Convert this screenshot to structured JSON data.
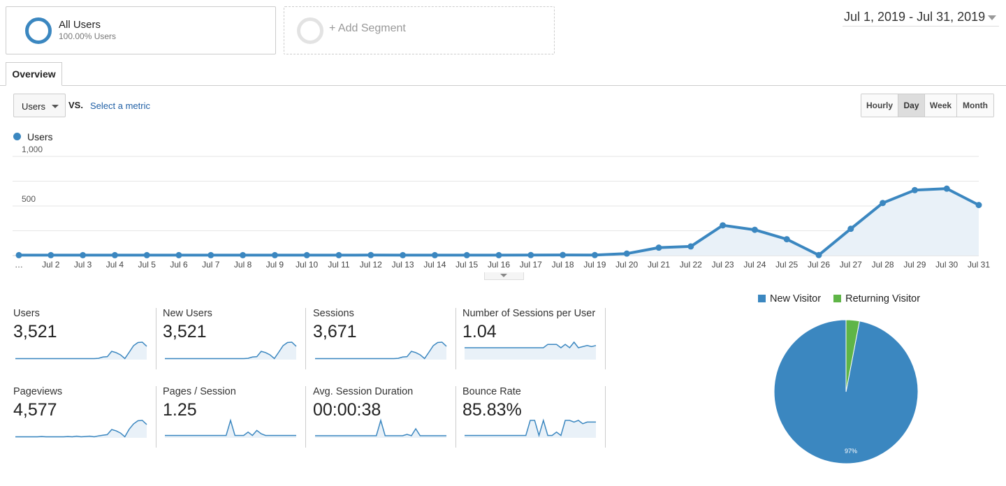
{
  "segments": {
    "all_users": {
      "title": "All Users",
      "subtitle": "100.00% Users"
    },
    "add": {
      "label": "+ Add Segment"
    }
  },
  "date_range": "Jul 1, 2019 - Jul 31, 2019",
  "tabs": {
    "overview": "Overview"
  },
  "metric_picker": {
    "selected": "Users",
    "vs": "VS.",
    "select_metric": "Select a metric"
  },
  "period_buttons": [
    {
      "label": "Hourly",
      "active": false
    },
    {
      "label": "Day",
      "active": true
    },
    {
      "label": "Week",
      "active": false
    },
    {
      "label": "Month",
      "active": false
    }
  ],
  "colors": {
    "accent": "#3b87c0",
    "new_visitor": "#3b87c0",
    "returning_visitor": "#5fb547"
  },
  "icons": [
    "segment-ring-icon",
    "add-segment-ring-icon",
    "date-dropdown-caret-icon",
    "metric-dropdown-caret-icon",
    "chart-collapse-caret-icon"
  ],
  "chart_data": [
    {
      "type": "area",
      "legend": "Users",
      "y_tick_labels": [
        "1,000",
        "500"
      ],
      "y_ticks": [
        1000,
        500
      ],
      "ylim": [
        0,
        1000
      ],
      "grid": true,
      "categories": [
        "…",
        "Jul 2",
        "Jul 3",
        "Jul 4",
        "Jul 5",
        "Jul 6",
        "Jul 7",
        "Jul 8",
        "Jul 9",
        "Jul 10",
        "Jul 11",
        "Jul 12",
        "Jul 13",
        "Jul 14",
        "Jul 15",
        "Jul 16",
        "Jul 17",
        "Jul 18",
        "Jul 19",
        "Jul 20",
        "Jul 21",
        "Jul 22",
        "Jul 23",
        "Jul 24",
        "Jul 25",
        "Jul 26",
        "Jul 27",
        "Jul 28",
        "Jul 29",
        "Jul 30",
        "Jul 31"
      ],
      "series": [
        {
          "name": "Users",
          "values": [
            4,
            4,
            4,
            4,
            4,
            4,
            4,
            4,
            4,
            4,
            4,
            5,
            4,
            4,
            4,
            4,
            5,
            6,
            5,
            20,
            80,
            92,
            305,
            260,
            165,
            5,
            270,
            530,
            660,
            675,
            510
          ]
        }
      ]
    },
    {
      "type": "pie",
      "legend": [
        "New Visitor",
        "Returning Visitor"
      ],
      "values": [
        97,
        3
      ],
      "slice_labels": [
        "97%",
        ""
      ]
    }
  ],
  "scorecards": [
    {
      "label": "Users",
      "value": "3,521",
      "spark": [
        1,
        1,
        1,
        1,
        1,
        1,
        1,
        1,
        1,
        1,
        1,
        1,
        1,
        1,
        1,
        1,
        1,
        1,
        1,
        2,
        6,
        7,
        24,
        20,
        13,
        1,
        21,
        42,
        52,
        53,
        40
      ]
    },
    {
      "label": "New Users",
      "value": "3,521",
      "spark": [
        1,
        1,
        1,
        1,
        1,
        1,
        1,
        1,
        1,
        1,
        1,
        1,
        1,
        1,
        1,
        1,
        1,
        1,
        1,
        2,
        6,
        7,
        24,
        20,
        13,
        1,
        21,
        42,
        52,
        53,
        40
      ]
    },
    {
      "label": "Sessions",
      "value": "3,671",
      "spark": [
        1,
        1,
        1,
        1,
        1,
        1,
        1,
        1,
        1,
        1,
        1,
        1,
        1,
        1,
        1,
        1,
        1,
        1,
        1,
        2,
        6,
        7,
        24,
        20,
        13,
        1,
        21,
        42,
        52,
        53,
        40
      ]
    },
    {
      "label": "Number of Sessions per User",
      "value": "1.04",
      "spark": [
        1,
        1,
        1,
        1,
        1,
        1,
        1,
        1,
        1,
        1,
        1,
        1,
        1,
        1,
        1,
        1,
        1,
        1,
        1,
        1.3,
        1.3,
        1.3,
        1,
        1.3,
        1,
        1.5,
        1,
        1.1,
        1.2,
        1.1,
        1.2
      ]
    },
    {
      "label": "Pageviews",
      "value": "4,577",
      "spark": [
        1,
        1,
        1,
        1,
        1,
        1,
        2,
        1,
        1,
        1,
        1,
        1,
        2,
        1,
        3,
        1,
        2,
        3,
        1,
        4,
        6,
        8,
        24,
        20,
        13,
        1,
        25,
        42,
        52,
        53,
        40
      ]
    },
    {
      "label": "Pages / Session",
      "value": "1.25",
      "spark": [
        1,
        1,
        1,
        1,
        1,
        1,
        1,
        1,
        1,
        1,
        1,
        1,
        1,
        1,
        1,
        10,
        1,
        1,
        1,
        3,
        1,
        4,
        2,
        1,
        1,
        1,
        1,
        1,
        1,
        1,
        1
      ]
    },
    {
      "label": "Avg. Session Duration",
      "value": "00:00:38",
      "spark": [
        1,
        1,
        1,
        1,
        1,
        1,
        1,
        1,
        1,
        1,
        1,
        1,
        1,
        1,
        1,
        12,
        1,
        1,
        1,
        1,
        1,
        2,
        1,
        6,
        1,
        1,
        1,
        1,
        1,
        1,
        1
      ]
    },
    {
      "label": "Bounce Rate",
      "value": "85.83%",
      "spark": [
        1,
        1,
        1,
        1,
        1,
        1,
        1,
        1,
        1,
        1,
        1,
        1,
        1,
        1,
        1,
        10,
        10,
        1,
        10,
        1,
        1,
        3,
        1,
        10,
        10,
        9,
        10,
        8,
        9,
        9,
        9
      ]
    }
  ]
}
